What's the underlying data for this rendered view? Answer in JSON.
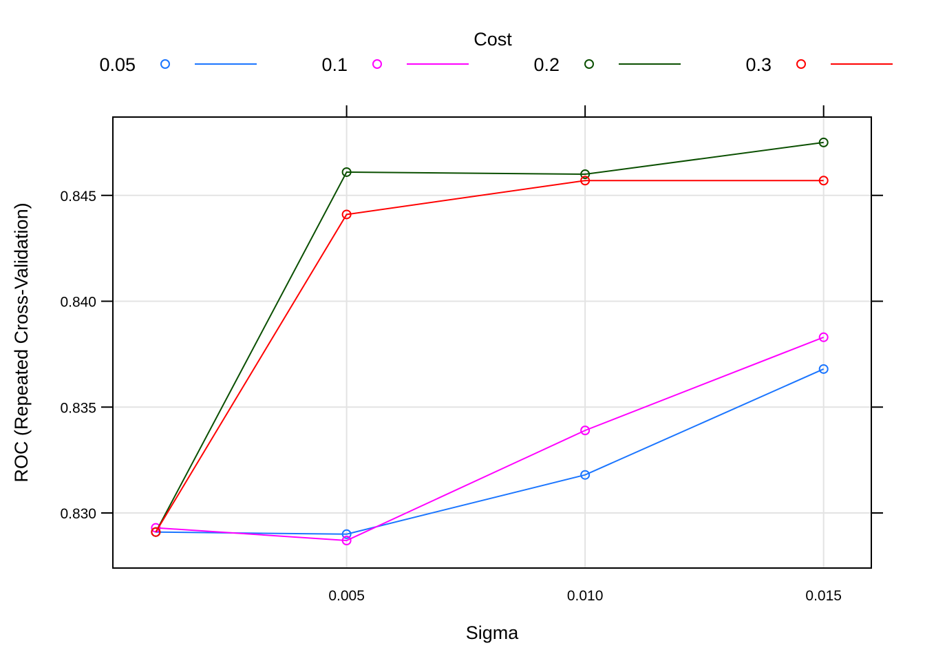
{
  "chart_data": {
    "type": "line",
    "xlabel": "Sigma",
    "ylabel": "ROC (Repeated Cross-Validation)",
    "legend": {
      "title": "Cost",
      "placement": "top"
    },
    "xlim": [
      0.0001,
      0.016
    ],
    "ylim": [
      0.8274,
      0.8487
    ],
    "x": [
      0.001,
      0.005,
      0.01,
      0.015
    ],
    "x_ticks": [
      0.005,
      0.01,
      0.015
    ],
    "x_tick_labels": [
      "0.005",
      "0.010",
      "0.015"
    ],
    "y_ticks": [
      0.83,
      0.835,
      0.84,
      0.845
    ],
    "y_tick_labels": [
      "0.830",
      "0.835",
      "0.840",
      "0.845"
    ],
    "grid": true,
    "series": [
      {
        "name": "0.05",
        "color": "#1a75ff",
        "values": [
          0.8291,
          0.829,
          0.8318,
          0.8368
        ]
      },
      {
        "name": "0.1",
        "color": "#ff00ff",
        "values": [
          0.8293,
          0.8287,
          0.8339,
          0.8383
        ]
      },
      {
        "name": "0.2",
        "color": "#0a4f00",
        "values": [
          0.8291,
          0.8461,
          0.846,
          0.8475
        ]
      },
      {
        "name": "0.3",
        "color": "#ff0000",
        "values": [
          0.8291,
          0.8441,
          0.8457,
          0.8457
        ]
      }
    ]
  }
}
